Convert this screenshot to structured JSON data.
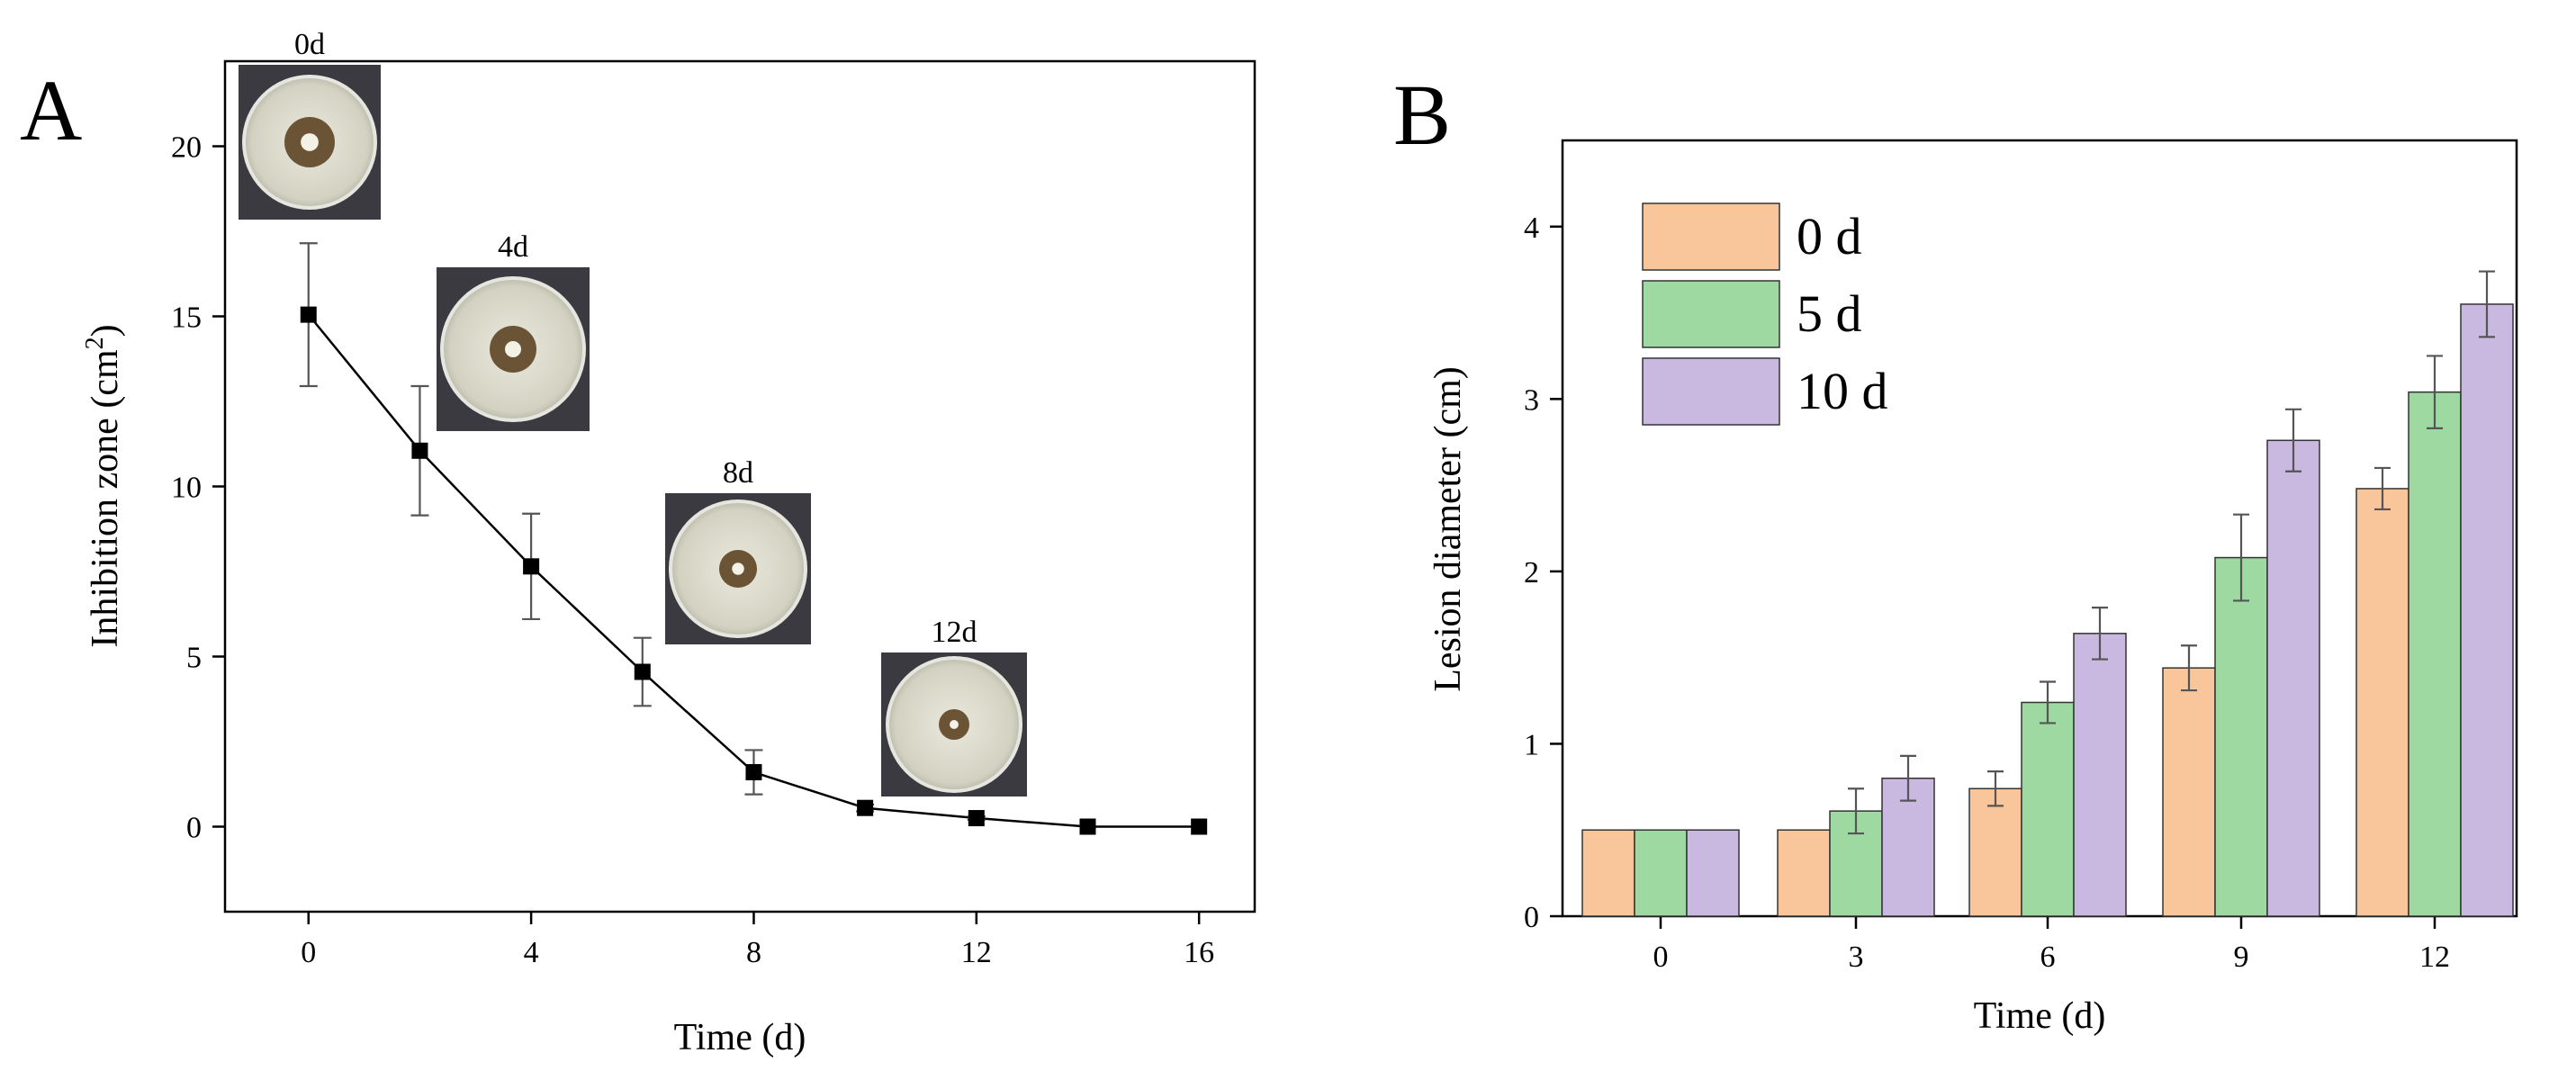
{
  "panel_labels": {
    "a": "A",
    "b": "B"
  },
  "chart_data": [
    {
      "panel": "A",
      "type": "line",
      "title": "",
      "xlabel": "Time (d)",
      "ylabel": "Inhibition zone (cm2)",
      "ylabel_main": "Inhibition zone (cm",
      "ylabel_sup": "2",
      "ylabel_end": ")",
      "xlim": [
        -1.5,
        17
      ],
      "ylim": [
        -2.5,
        22.5
      ],
      "xticks": [
        0,
        4,
        8,
        12,
        16
      ],
      "yticks": [
        0,
        5,
        10,
        15,
        20
      ],
      "x": [
        0,
        2,
        4,
        6,
        8,
        10,
        12,
        14,
        16
      ],
      "y": [
        15.05,
        11.05,
        7.65,
        4.55,
        1.6,
        0.55,
        0.25,
        0.0,
        0.0
      ],
      "err": [
        2.1,
        1.9,
        1.55,
        1.0,
        0.65,
        0.1,
        0.05,
        0.0,
        0.0
      ],
      "marker": "square",
      "color": "#000000",
      "photos": [
        {
          "label": "0d",
          "x": 0
        },
        {
          "label": "4d",
          "x": 4
        },
        {
          "label": "8d",
          "x": 8
        },
        {
          "label": "12d",
          "x": 12
        }
      ]
    },
    {
      "panel": "B",
      "type": "bar",
      "title": "",
      "xlabel": "Time (d)",
      "ylabel": "Lesion diameter (cm)",
      "ylim": [
        0,
        4.5
      ],
      "yticks": [
        0,
        1,
        2,
        3,
        4
      ],
      "categories": [
        "0",
        "3",
        "6",
        "9",
        "12"
      ],
      "series": [
        {
          "name": "0 d",
          "color": "#F9C59B",
          "values": [
            0.5,
            0.5,
            0.74,
            1.44,
            2.48
          ],
          "err": [
            0,
            0,
            0.1,
            0.13,
            0.12
          ]
        },
        {
          "name": "5 d",
          "color": "#9FD9A2",
          "values": [
            0.5,
            0.61,
            1.24,
            2.08,
            3.04
          ],
          "err": [
            0,
            0.13,
            0.12,
            0.25,
            0.21
          ]
        },
        {
          "name": "10 d",
          "color": "#C9B8E0",
          "values": [
            0.5,
            0.8,
            1.64,
            2.76,
            3.55
          ],
          "err": [
            0,
            0.13,
            0.15,
            0.18,
            0.19
          ]
        }
      ],
      "legend_position": "top-left"
    }
  ]
}
